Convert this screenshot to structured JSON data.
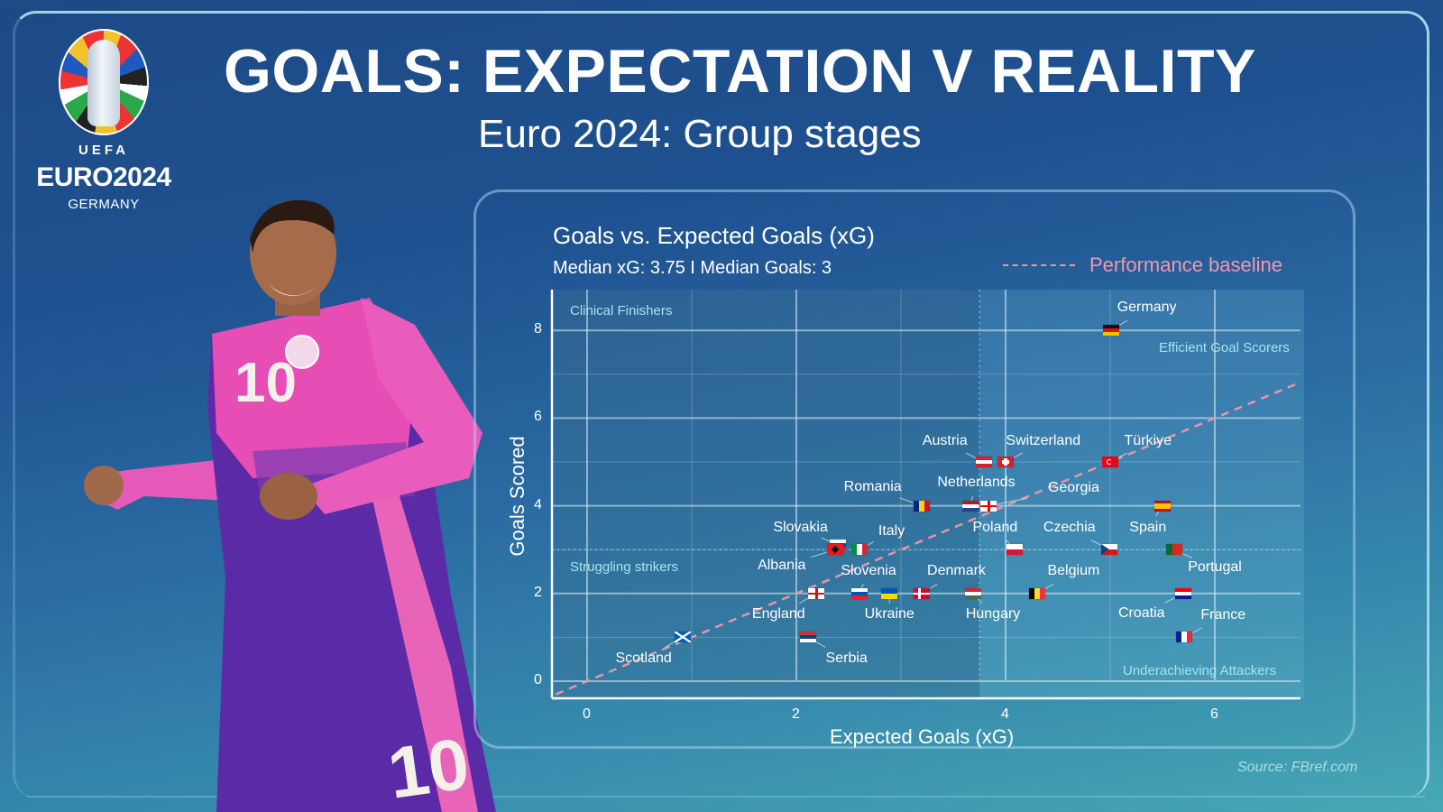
{
  "header": {
    "title": "GOALS: EXPECTATION V REALITY",
    "subtitle": "Euro 2024: Group stages"
  },
  "logo": {
    "icon": "euro2024-trophy-logo",
    "uefa": "UEFA",
    "wordmark": "EURO2024",
    "country": "GERMANY"
  },
  "player_image": {
    "icon": "footballer-photo",
    "shirt_number": "10",
    "kit_colors": [
      "#e64db5",
      "#5b2aa6"
    ]
  },
  "colors": {
    "baseline": "#e994a8",
    "quadrant_text": "#a9e2ef",
    "frame": "#9fd3ea",
    "background_top": "#1d4a86",
    "background_bottom": "#46a9b3"
  },
  "source": "Source: FBref.com",
  "chart_data": {
    "type": "scatter",
    "title": "Goals vs. Expected Goals (xG)",
    "subtitle": "Median xG: 3.75 I Median Goals: 3",
    "xlabel": "Expected Goals (xG)",
    "ylabel": "Goals Scored",
    "xlim": [
      -0.3,
      6.85
    ],
    "ylim": [
      -0.3,
      8.9
    ],
    "xticks": [
      0,
      2,
      4,
      6
    ],
    "yticks": [
      0,
      2,
      4,
      6,
      8
    ],
    "grid": true,
    "median_xg": 3.75,
    "median_goals": 3,
    "legend": {
      "label": "Performance baseline",
      "style": "dashed",
      "position": "top-right"
    },
    "baseline": {
      "slope": 1,
      "intercept": 0
    },
    "quadrants": [
      {
        "label": "Clinical Finishers",
        "position": "top-left"
      },
      {
        "label": "Efficient Goal Scorers",
        "position": "top-right"
      },
      {
        "label": "Struggling strikers",
        "position": "bottom-left"
      },
      {
        "label": "Underachieving Attackers",
        "position": "bottom-right"
      }
    ],
    "points": [
      {
        "team": "Germany",
        "xg": 5.01,
        "goals": 8,
        "flag": "de",
        "lx": 5.35,
        "ly": 8.5
      },
      {
        "team": "Austria",
        "xg": 3.79,
        "goals": 5,
        "flag": "at",
        "lx": 3.42,
        "ly": 5.45
      },
      {
        "team": "Switzerland",
        "xg": 4.0,
        "goals": 5,
        "flag": "ch",
        "lx": 4.36,
        "ly": 5.45
      },
      {
        "team": "Türkiye",
        "xg": 5.0,
        "goals": 5,
        "flag": "tr",
        "lx": 5.36,
        "ly": 5.45
      },
      {
        "team": "Romania",
        "xg": 3.2,
        "goals": 4,
        "flag": "ro",
        "lx": 2.73,
        "ly": 4.4
      },
      {
        "team": "Netherlands",
        "xg": 3.66,
        "goals": 4,
        "flag": "nl",
        "lx": 3.72,
        "ly": 4.5
      },
      {
        "team": "Georgia",
        "xg": 3.84,
        "goals": 4,
        "flag": "ge",
        "lx": 4.65,
        "ly": 4.38
      },
      {
        "team": "Spain",
        "xg": 5.5,
        "goals": 4,
        "flag": "es",
        "lx": 5.36,
        "ly": 3.48
      },
      {
        "team": "Slovakia",
        "xg": 2.4,
        "goals": 3.1,
        "flag": "sk",
        "lx": 2.04,
        "ly": 3.48
      },
      {
        "team": "Italy",
        "xg": 2.6,
        "goals": 3,
        "flag": "it",
        "lx": 2.91,
        "ly": 3.4
      },
      {
        "team": "Albania",
        "xg": 2.37,
        "goals": 3,
        "flag": "al",
        "lx": 1.86,
        "ly": 2.62
      },
      {
        "team": "Poland",
        "xg": 4.09,
        "goals": 3,
        "flag": "pl",
        "lx": 3.9,
        "ly": 3.48
      },
      {
        "team": "Czechia",
        "xg": 4.99,
        "goals": 3,
        "flag": "cz",
        "lx": 4.61,
        "ly": 3.48
      },
      {
        "team": "Portugal",
        "xg": 5.61,
        "goals": 3,
        "flag": "pt",
        "lx": 6.0,
        "ly": 2.57
      },
      {
        "team": "Slovenia",
        "xg": 2.6,
        "goals": 2,
        "flag": "si",
        "lx": 2.69,
        "ly": 2.48
      },
      {
        "team": "Denmark",
        "xg": 3.2,
        "goals": 2,
        "flag": "dk",
        "lx": 3.53,
        "ly": 2.48
      },
      {
        "team": "Belgium",
        "xg": 4.3,
        "goals": 2,
        "flag": "be",
        "lx": 4.65,
        "ly": 2.48
      },
      {
        "team": "England",
        "xg": 2.19,
        "goals": 2,
        "flag": "en",
        "lx": 1.83,
        "ly": 1.5
      },
      {
        "team": "Ukraine",
        "xg": 2.89,
        "goals": 2,
        "flag": "ua",
        "lx": 2.89,
        "ly": 1.5
      },
      {
        "team": "Hungary",
        "xg": 3.69,
        "goals": 2,
        "flag": "hu",
        "lx": 3.88,
        "ly": 1.5
      },
      {
        "team": "Croatia",
        "xg": 5.7,
        "goals": 2,
        "flag": "hr",
        "lx": 5.3,
        "ly": 1.52
      },
      {
        "team": "France",
        "xg": 5.71,
        "goals": 1,
        "flag": "fr",
        "lx": 6.08,
        "ly": 1.48
      },
      {
        "team": "Serbia",
        "xg": 2.11,
        "goals": 1,
        "flag": "rs",
        "lx": 2.48,
        "ly": 0.5
      },
      {
        "team": "Scotland",
        "xg": 0.91,
        "goals": 1,
        "flag": "sco",
        "lx": 0.54,
        "ly": 0.5
      }
    ]
  }
}
